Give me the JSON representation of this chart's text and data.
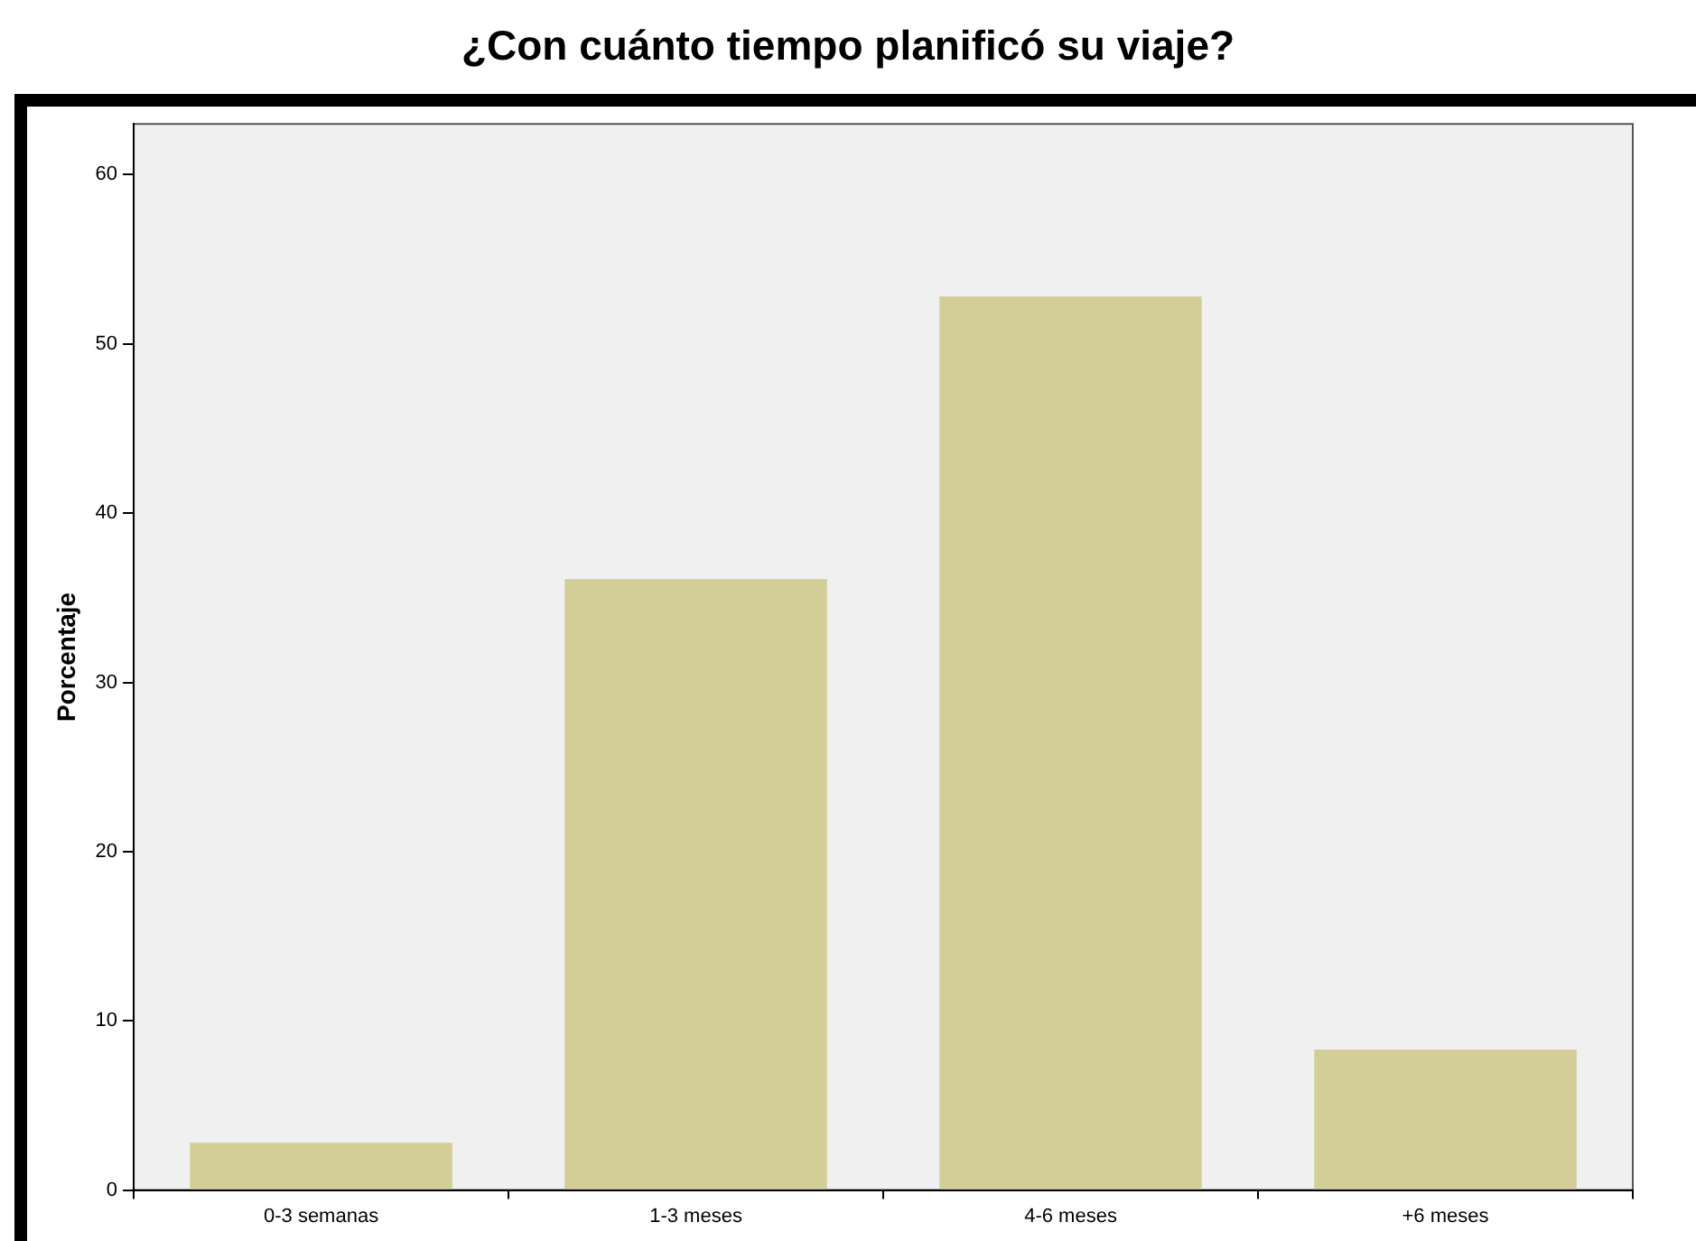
{
  "chart_data": {
    "type": "bar",
    "title": "¿Con cuánto tiempo planificó su viaje?",
    "ylabel": "Porcentaje",
    "categories": [
      "0-3 semanas",
      "1-3 meses",
      "4-6 meses",
      "+6 meses"
    ],
    "values": [
      2.8,
      36.1,
      52.8,
      8.3
    ],
    "color": "#d3ce97",
    "ylim": [
      0,
      63
    ],
    "yticks": [
      0,
      10,
      20,
      30,
      40,
      50,
      60
    ],
    "grid": false,
    "legend": false
  }
}
